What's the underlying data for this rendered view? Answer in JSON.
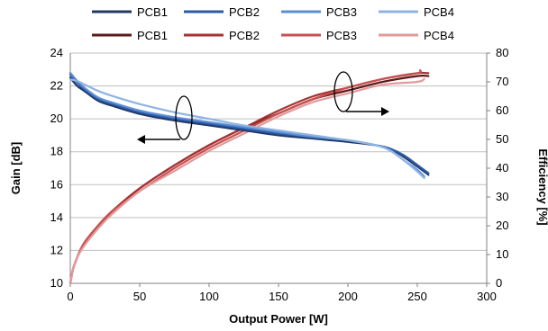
{
  "chart_data": {
    "type": "line",
    "xlabel": "Output Power [W]",
    "ylabel_left": "Gain [dB]",
    "ylabel_right": "Efficiency [%]",
    "xlim": [
      0,
      300
    ],
    "ylim_left": [
      10,
      24
    ],
    "ylim_right": [
      0,
      80
    ],
    "x_ticks": [
      "0",
      "50",
      "100",
      "150",
      "200",
      "250",
      "300"
    ],
    "y_left_ticks": [
      "10",
      "12",
      "14",
      "16",
      "18",
      "20",
      "22",
      "24"
    ],
    "y_right_ticks": [
      "0",
      "10",
      "20",
      "30",
      "40",
      "50",
      "60",
      "70",
      "80"
    ],
    "grid": "horizontal",
    "legend_position": "top",
    "series": [
      {
        "name": "PCB1",
        "axis": "left",
        "color": "#1f3864",
        "x": [
          0,
          5,
          10,
          20,
          30,
          50,
          75,
          100,
          125,
          150,
          175,
          200,
          220,
          230,
          240,
          250,
          258
        ],
        "y": [
          22.5,
          22.0,
          21.7,
          21.1,
          20.8,
          20.3,
          19.9,
          19.6,
          19.3,
          19.0,
          18.8,
          18.6,
          18.4,
          18.2,
          17.7,
          17.1,
          16.6
        ]
      },
      {
        "name": "PCB2",
        "axis": "left",
        "color": "#2e5aa8",
        "x": [
          0,
          5,
          10,
          20,
          30,
          50,
          75,
          100,
          125,
          150,
          175,
          200,
          220,
          230,
          240,
          250,
          258
        ],
        "y": [
          22.7,
          22.2,
          21.8,
          21.2,
          20.9,
          20.4,
          20.0,
          19.7,
          19.4,
          19.1,
          18.9,
          18.7,
          18.4,
          18.2,
          17.8,
          17.2,
          16.7
        ]
      },
      {
        "name": "PCB3",
        "axis": "left",
        "color": "#5b8ed6",
        "x": [
          0,
          5,
          10,
          20,
          30,
          50,
          75,
          100,
          125,
          150,
          175,
          200,
          220,
          230,
          240,
          250,
          255
        ],
        "y": [
          22.8,
          22.3,
          21.9,
          21.3,
          21.0,
          20.5,
          20.1,
          19.8,
          19.5,
          19.2,
          18.9,
          18.7,
          18.4,
          18.1,
          17.5,
          16.9,
          16.5
        ]
      },
      {
        "name": "PCB4",
        "axis": "left",
        "color": "#8fb4e3",
        "x": [
          0,
          5,
          10,
          20,
          30,
          50,
          75,
          100,
          125,
          150,
          175,
          200,
          220,
          230,
          240,
          250,
          255
        ],
        "y": [
          22.4,
          22.3,
          22.1,
          21.7,
          21.4,
          20.9,
          20.4,
          20.0,
          19.6,
          19.3,
          19.0,
          18.7,
          18.4,
          18.1,
          17.5,
          16.8,
          16.4
        ]
      },
      {
        "name": "PCB1",
        "axis": "right",
        "color": "#5c1a1a",
        "x": [
          0,
          2,
          5,
          10,
          20,
          30,
          50,
          75,
          100,
          125,
          150,
          175,
          200,
          225,
          250,
          258
        ],
        "y": [
          0,
          5,
          9,
          14,
          20,
          25,
          33,
          41,
          48,
          54,
          59,
          64,
          67,
          70,
          72,
          72
        ]
      },
      {
        "name": "PCB2",
        "axis": "right",
        "color": "#a83232",
        "x": [
          0,
          2,
          5,
          10,
          20,
          30,
          50,
          75,
          100,
          125,
          150,
          175,
          200,
          225,
          250,
          258
        ],
        "y": [
          0,
          5,
          9,
          14,
          20,
          25,
          33,
          41,
          48,
          54,
          60,
          65,
          68,
          71,
          73,
          73
        ]
      },
      {
        "name": "PCB3",
        "axis": "right",
        "color": "#c75050",
        "x": [
          0,
          2,
          5,
          10,
          20,
          30,
          50,
          75,
          100,
          125,
          150,
          175,
          200,
          225,
          250,
          252
        ],
        "y": [
          0,
          5,
          9,
          14,
          20,
          25,
          32,
          40,
          47,
          53,
          59,
          64,
          68,
          71,
          73,
          74
        ]
      },
      {
        "name": "PCB4",
        "axis": "right",
        "color": "#e39a9a",
        "x": [
          0,
          2,
          5,
          10,
          20,
          30,
          50,
          75,
          100,
          125,
          150,
          175,
          200,
          225,
          250,
          255
        ],
        "y": [
          0,
          5,
          9,
          13,
          19,
          24,
          32,
          39,
          46,
          52,
          58,
          63,
          66,
          69,
          70,
          71
        ]
      }
    ]
  }
}
